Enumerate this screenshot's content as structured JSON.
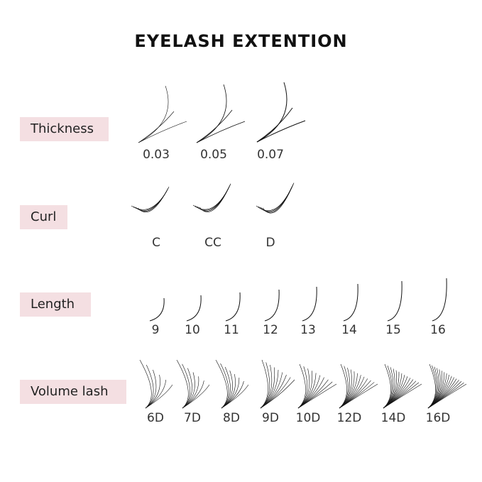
{
  "title": "EYELASH EXTENTION",
  "sections": {
    "thickness": {
      "label": "Thickness",
      "options": [
        "0.03",
        "0.05",
        "0.07"
      ]
    },
    "curl": {
      "label": "Curl",
      "options": [
        "C",
        "CC",
        "D"
      ]
    },
    "length": {
      "label": "Length",
      "options": [
        "9",
        "10",
        "11",
        "12",
        "13",
        "14",
        "15",
        "16"
      ]
    },
    "volume": {
      "label": "Volume lash",
      "options": [
        "6D",
        "7D",
        "8D",
        "9D",
        "10D",
        "12D",
        "14D",
        "16D"
      ]
    }
  },
  "colors": {
    "tag_background": "#f4dfe2",
    "lash": "#111111"
  }
}
